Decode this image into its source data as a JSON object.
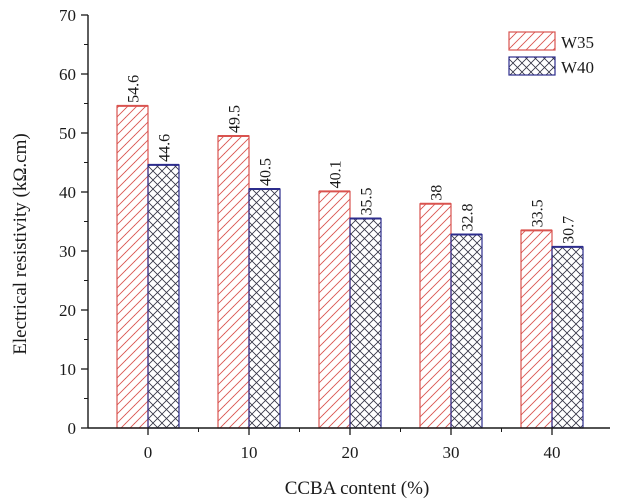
{
  "chart_data": {
    "type": "bar",
    "xlabel": "CCBA content (%)",
    "ylabel": "Electrical resistivity (kΩ.cm)",
    "categories": [
      "0",
      "10",
      "20",
      "30",
      "40"
    ],
    "ylim": [
      0,
      70
    ],
    "yticks": [
      "0",
      "10",
      "20",
      "30",
      "40",
      "50",
      "60",
      "70"
    ],
    "grid": false,
    "legend_position": "top-right",
    "series": [
      {
        "name": "W35",
        "values": [
          54.6,
          49.5,
          40.1,
          38,
          33.5
        ],
        "labels": [
          "54.6",
          "49.5",
          "40.1",
          "38",
          "33.5"
        ],
        "color": "#d9534f",
        "pattern": "diagonal-hatch"
      },
      {
        "name": "W40",
        "values": [
          44.6,
          40.5,
          35.5,
          32.8,
          30.7
        ],
        "labels": [
          "44.6",
          "40.5",
          "35.5",
          "32.8",
          "30.7"
        ],
        "color": "#2c2c8c",
        "pattern": "crosshatch"
      }
    ]
  }
}
